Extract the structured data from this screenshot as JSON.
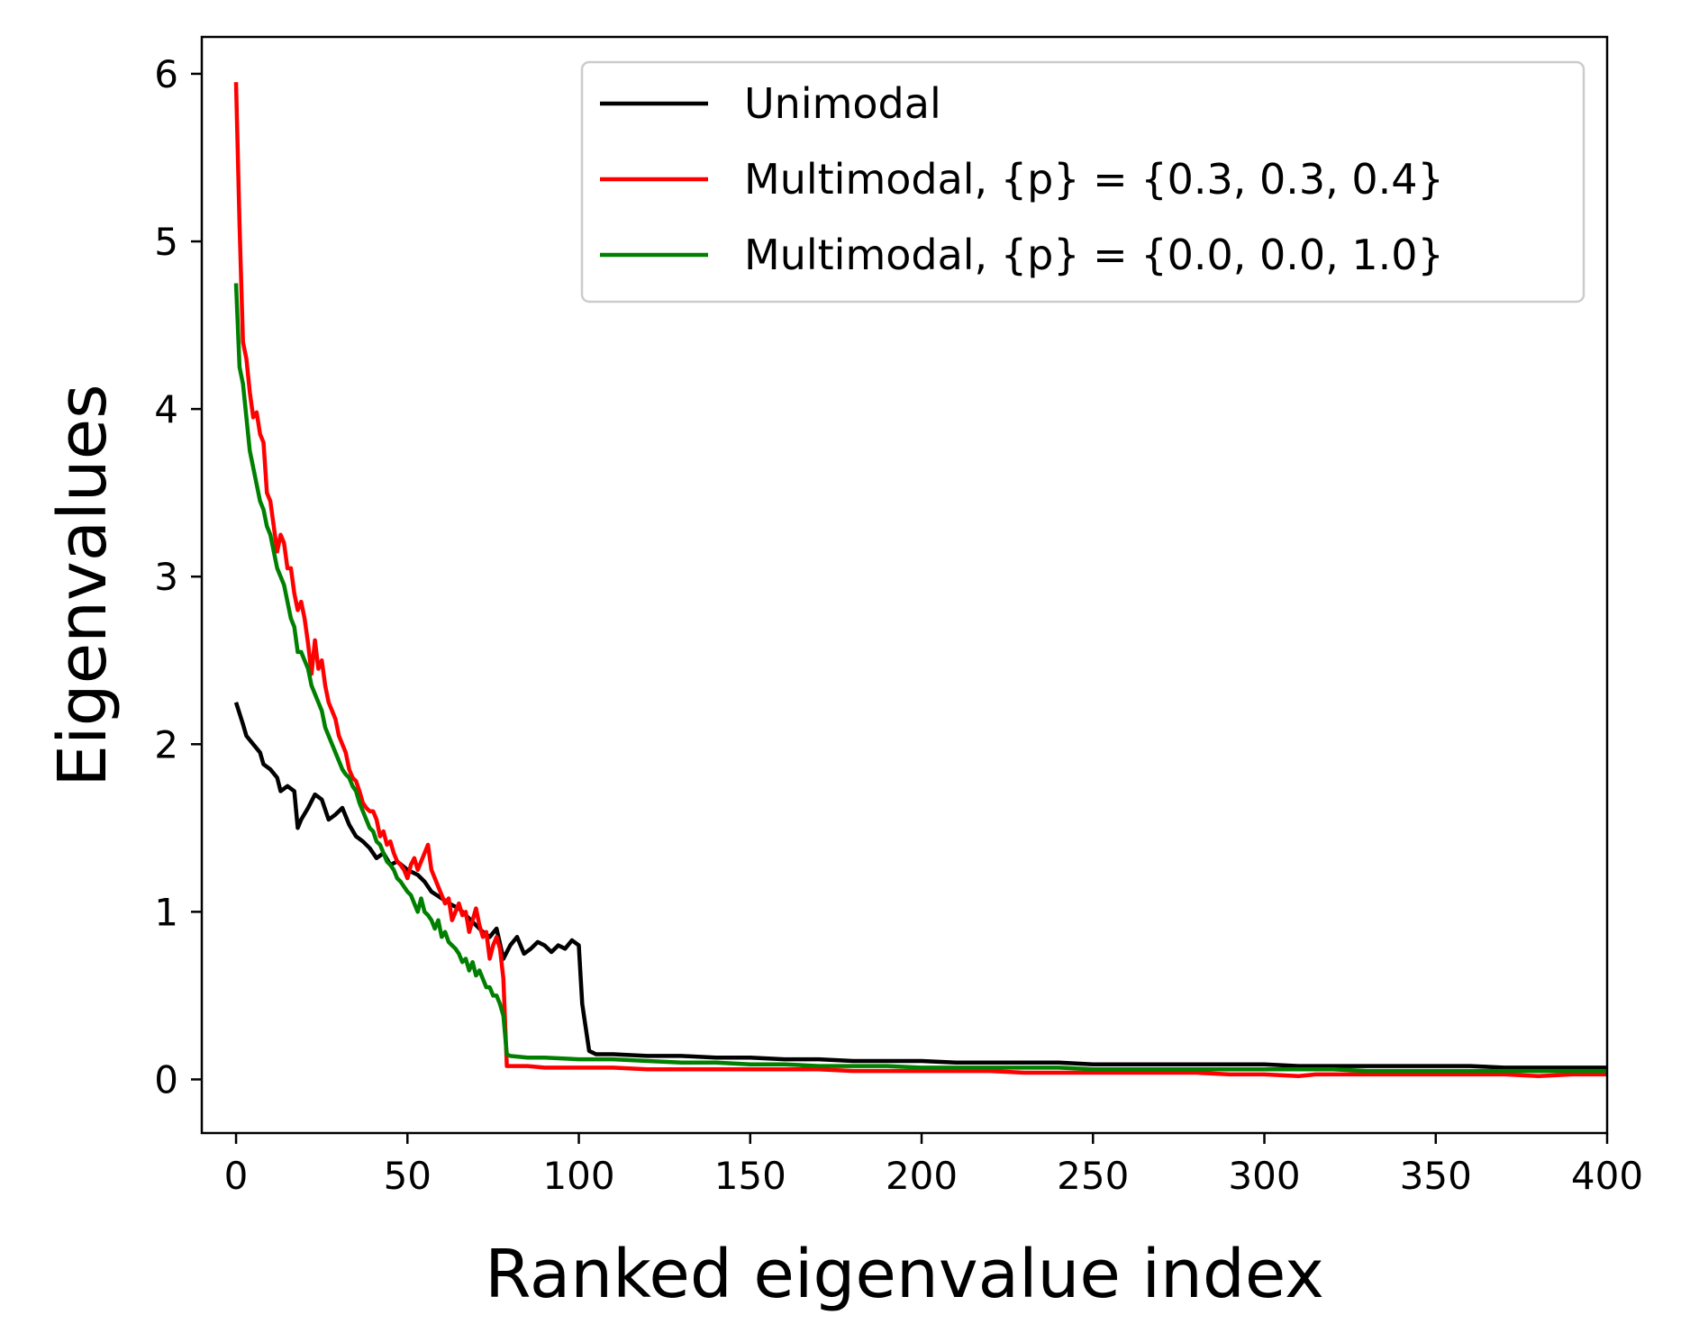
{
  "chart_data": {
    "type": "line",
    "title": "",
    "xlabel": "Ranked eigenvalue index",
    "ylabel": "Eigenvalues",
    "xlim": [
      -10,
      400
    ],
    "ylim": [
      -0.32,
      6.22
    ],
    "xticks": [
      0,
      50,
      100,
      150,
      200,
      250,
      300,
      350,
      400
    ],
    "yticks": [
      0,
      1,
      2,
      3,
      4,
      5,
      6
    ],
    "grid": false,
    "legend_position": "top-right",
    "series": [
      {
        "name": "Unimodal",
        "color": "#000000",
        "x": [
          0,
          2,
          3,
          5,
          7,
          8,
          10,
          12,
          13,
          15,
          17,
          18,
          19,
          21,
          23,
          25,
          27,
          29,
          31,
          33,
          35,
          37,
          39,
          41,
          43,
          45,
          47,
          50,
          53,
          55,
          57,
          60,
          63,
          65,
          67,
          70,
          72,
          74,
          76,
          78,
          80,
          82,
          84,
          86,
          88,
          90,
          92,
          94,
          96,
          98,
          100,
          101,
          103,
          105,
          110,
          120,
          130,
          140,
          150,
          160,
          170,
          180,
          190,
          200,
          210,
          220,
          230,
          240,
          250,
          260,
          270,
          280,
          290,
          300,
          310,
          320,
          330,
          340,
          350,
          360,
          370,
          380,
          390,
          400
        ],
        "y": [
          2.25,
          2.12,
          2.05,
          2.0,
          1.95,
          1.88,
          1.85,
          1.8,
          1.72,
          1.75,
          1.72,
          1.5,
          1.55,
          1.62,
          1.7,
          1.67,
          1.55,
          1.58,
          1.62,
          1.52,
          1.45,
          1.42,
          1.38,
          1.32,
          1.35,
          1.28,
          1.3,
          1.25,
          1.22,
          1.18,
          1.12,
          1.08,
          1.04,
          1.02,
          0.98,
          0.92,
          0.88,
          0.85,
          0.9,
          0.72,
          0.8,
          0.85,
          0.75,
          0.78,
          0.82,
          0.8,
          0.76,
          0.8,
          0.78,
          0.83,
          0.8,
          0.45,
          0.17,
          0.15,
          0.15,
          0.14,
          0.14,
          0.13,
          0.13,
          0.12,
          0.12,
          0.11,
          0.11,
          0.11,
          0.1,
          0.1,
          0.1,
          0.1,
          0.09,
          0.09,
          0.09,
          0.09,
          0.09,
          0.09,
          0.08,
          0.08,
          0.08,
          0.08,
          0.08,
          0.08,
          0.07,
          0.07,
          0.07,
          0.07
        ]
      },
      {
        "name": "Multimodal, {p} = {0.3, 0.3, 0.4}",
        "color": "#ff0000",
        "x": [
          0,
          1,
          2,
          3,
          4,
          5,
          6,
          7,
          8,
          9,
          10,
          11,
          12,
          13,
          14,
          15,
          16,
          17,
          18,
          19,
          20,
          21,
          22,
          23,
          24,
          25,
          26,
          27,
          28,
          29,
          30,
          31,
          32,
          33,
          34,
          35,
          36,
          37,
          38,
          39,
          40,
          41,
          42,
          43,
          44,
          45,
          46,
          47,
          48,
          49,
          50,
          51,
          52,
          53,
          54,
          55,
          56,
          57,
          58,
          59,
          60,
          61,
          62,
          63,
          64,
          65,
          66,
          67,
          68,
          69,
          70,
          71,
          72,
          73,
          74,
          75,
          76,
          77,
          78,
          79,
          80,
          82,
          85,
          90,
          95,
          100,
          110,
          120,
          130,
          140,
          150,
          160,
          170,
          180,
          190,
          200,
          210,
          220,
          230,
          240,
          250,
          260,
          270,
          280,
          290,
          300,
          310,
          315,
          320,
          330,
          340,
          350,
          360,
          370,
          380,
          390,
          400
        ],
        "y": [
          5.95,
          5.1,
          4.4,
          4.3,
          4.1,
          3.95,
          3.98,
          3.85,
          3.8,
          3.5,
          3.45,
          3.3,
          3.15,
          3.25,
          3.2,
          3.05,
          3.05,
          2.9,
          2.8,
          2.85,
          2.75,
          2.6,
          2.42,
          2.62,
          2.45,
          2.5,
          2.35,
          2.25,
          2.2,
          2.15,
          2.05,
          2.0,
          1.95,
          1.85,
          1.8,
          1.78,
          1.72,
          1.65,
          1.62,
          1.6,
          1.6,
          1.55,
          1.45,
          1.48,
          1.4,
          1.42,
          1.35,
          1.3,
          1.28,
          1.25,
          1.2,
          1.28,
          1.32,
          1.25,
          1.3,
          1.35,
          1.4,
          1.25,
          1.2,
          1.15,
          1.1,
          1.05,
          1.08,
          0.95,
          1.0,
          1.05,
          0.98,
          1.0,
          0.88,
          0.95,
          1.02,
          0.92,
          0.85,
          0.88,
          0.72,
          0.8,
          0.85,
          0.78,
          0.6,
          0.08,
          0.08,
          0.08,
          0.08,
          0.07,
          0.07,
          0.07,
          0.07,
          0.06,
          0.06,
          0.06,
          0.06,
          0.06,
          0.06,
          0.05,
          0.05,
          0.05,
          0.05,
          0.05,
          0.04,
          0.04,
          0.04,
          0.04,
          0.04,
          0.04,
          0.03,
          0.03,
          0.02,
          0.03,
          0.03,
          0.03,
          0.03,
          0.03,
          0.03,
          0.03,
          0.02,
          0.03,
          0.03
        ]
      },
      {
        "name": "Multimodal, {p} = {0.0, 0.0, 1.0}",
        "color": "#008000",
        "x": [
          0,
          1,
          2,
          3,
          4,
          5,
          6,
          7,
          8,
          9,
          10,
          11,
          12,
          13,
          14,
          15,
          16,
          17,
          18,
          19,
          20,
          21,
          22,
          23,
          24,
          25,
          26,
          27,
          28,
          29,
          30,
          31,
          32,
          33,
          34,
          35,
          36,
          37,
          38,
          39,
          40,
          41,
          42,
          43,
          44,
          45,
          46,
          47,
          48,
          49,
          50,
          51,
          52,
          53,
          54,
          55,
          56,
          57,
          58,
          59,
          60,
          61,
          62,
          63,
          64,
          65,
          66,
          67,
          68,
          69,
          70,
          71,
          72,
          73,
          74,
          75,
          76,
          77,
          78,
          79,
          80,
          85,
          90,
          100,
          110,
          120,
          130,
          140,
          150,
          160,
          170,
          180,
          190,
          200,
          210,
          220,
          230,
          240,
          250,
          260,
          270,
          280,
          290,
          300,
          310,
          320,
          330,
          340,
          350,
          360,
          370,
          380,
          390,
          400
        ],
        "y": [
          4.75,
          4.25,
          4.15,
          3.95,
          3.75,
          3.65,
          3.55,
          3.45,
          3.4,
          3.3,
          3.25,
          3.15,
          3.05,
          3.0,
          2.95,
          2.85,
          2.75,
          2.7,
          2.55,
          2.55,
          2.5,
          2.45,
          2.35,
          2.3,
          2.25,
          2.2,
          2.1,
          2.05,
          2.0,
          1.95,
          1.9,
          1.85,
          1.82,
          1.8,
          1.75,
          1.72,
          1.65,
          1.6,
          1.55,
          1.5,
          1.48,
          1.42,
          1.4,
          1.35,
          1.3,
          1.28,
          1.25,
          1.2,
          1.18,
          1.15,
          1.12,
          1.1,
          1.05,
          1.0,
          1.08,
          1.0,
          0.98,
          0.95,
          0.9,
          0.95,
          0.85,
          0.88,
          0.82,
          0.8,
          0.78,
          0.75,
          0.7,
          0.72,
          0.65,
          0.7,
          0.62,
          0.65,
          0.6,
          0.55,
          0.55,
          0.5,
          0.5,
          0.45,
          0.38,
          0.15,
          0.14,
          0.13,
          0.13,
          0.12,
          0.12,
          0.11,
          0.1,
          0.1,
          0.09,
          0.09,
          0.08,
          0.08,
          0.08,
          0.07,
          0.07,
          0.07,
          0.07,
          0.07,
          0.06,
          0.06,
          0.06,
          0.06,
          0.06,
          0.06,
          0.06,
          0.06,
          0.05,
          0.05,
          0.05,
          0.05,
          0.05,
          0.05,
          0.05,
          0.05
        ]
      }
    ]
  }
}
